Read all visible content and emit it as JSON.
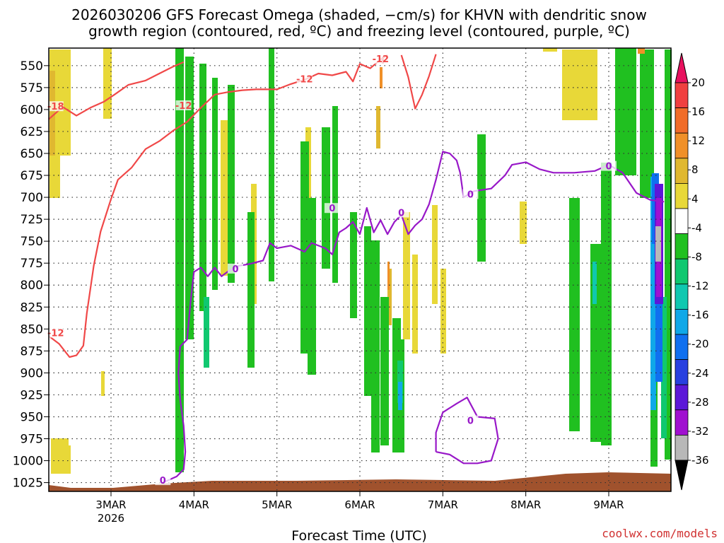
{
  "title": {
    "line1": "2026030206 GFS Forecast Omega (shaded, −cm/s) for KHVN with dendritic snow",
    "line2": "growth region (contoured, red, ºC) and freezing level (contoured, purple, ºC)"
  },
  "credit": "coolwx.com/models",
  "chart_data": {
    "type": "time-height cross section",
    "xlabel": "Forecast Time (UTC)",
    "ylabel": "",
    "y_axis": {
      "unit": "hPa",
      "ticks": [
        550,
        575,
        600,
        625,
        650,
        675,
        700,
        725,
        750,
        775,
        800,
        825,
        850,
        875,
        900,
        925,
        950,
        975,
        1000,
        1025
      ],
      "range": [
        1035,
        530
      ]
    },
    "x_axis": {
      "start": "2026-03-02T06:00Z",
      "end": "2026-03-09T18:00Z",
      "ticks": [
        {
          "time": "2026-03-03T00:00Z",
          "label": "3MAR",
          "sublabel": "2026"
        },
        {
          "time": "2026-03-04T00:00Z",
          "label": "4MAR"
        },
        {
          "time": "2026-03-05T00:00Z",
          "label": "5MAR"
        },
        {
          "time": "2026-03-06T00:00Z",
          "label": "6MAR"
        },
        {
          "time": "2026-03-07T00:00Z",
          "label": "7MAR"
        },
        {
          "time": "2026-03-08T00:00Z",
          "label": "8MAR"
        },
        {
          "time": "2026-03-09T00:00Z",
          "label": "9MAR"
        }
      ]
    },
    "grid": true,
    "colorbar": {
      "unit": "−cm/s",
      "levels": [
        20,
        16,
        12,
        8,
        4,
        -4,
        -8,
        -12,
        -16,
        -20,
        -24,
        -28,
        -32,
        -36
      ],
      "colors_top_to_bottom": [
        "#e8115e",
        "#f04040",
        "#f06c28",
        "#f09028",
        "#e0b830",
        "#e8d838",
        "#ffffff",
        "#20c020",
        "#10c870",
        "#10c8b0",
        "#10a8e8",
        "#1070f0",
        "#2840e0",
        "#5c18d8",
        "#a010d0",
        "#b8b8b8",
        "#000000"
      ]
    },
    "surface_pressure_hPa": 1025,
    "contours": [
      {
        "name": "dendritic snow growth region",
        "color": "#f04848",
        "labels": [
          "-18",
          "-12",
          "-12",
          "-12",
          "-12"
        ],
        "label_points": [
          {
            "time": "2026-03-02T08:00Z",
            "p": 597,
            "text": "-18"
          },
          {
            "time": "2026-03-03T21:00Z",
            "p": 596,
            "text": "-12"
          },
          {
            "time": "2026-03-05T08:00Z",
            "p": 566,
            "text": "-12"
          },
          {
            "time": "2026-03-06T06:00Z",
            "p": 543,
            "text": "-12"
          },
          {
            "time": "2026-03-02T08:00Z",
            "p": 855,
            "text": "-12"
          }
        ],
        "paths": [
          [
            [
              "2026-03-02T06:00Z",
              611
            ],
            [
              "2026-03-02T10:00Z",
              597
            ],
            [
              "2026-03-02T14:00Z",
              607
            ],
            [
              "2026-03-02T18:00Z",
              598
            ],
            [
              "2026-03-02T22:00Z",
              591
            ],
            [
              "2026-03-03T01:00Z",
              583
            ],
            [
              "2026-03-03T05:00Z",
              572
            ],
            [
              "2026-03-03T10:00Z",
              567
            ],
            [
              "2026-03-03T14:00Z",
              559
            ],
            [
              "2026-03-03T18:00Z",
              551
            ],
            [
              "2026-03-03T21:00Z",
              546
            ]
          ],
          [
            [
              "2026-03-02T06:00Z",
              858
            ],
            [
              "2026-03-02T09:00Z",
              867
            ],
            [
              "2026-03-02T12:00Z",
              882
            ],
            [
              "2026-03-02T14:00Z",
              880
            ],
            [
              "2026-03-02T16:00Z",
              869
            ],
            [
              "2026-03-02T17:00Z",
              832
            ],
            [
              "2026-03-02T19:00Z",
              778
            ],
            [
              "2026-03-02T21:00Z",
              739
            ],
            [
              "2026-03-03T00:00Z",
              702
            ],
            [
              "2026-03-03T02:00Z",
              680
            ],
            [
              "2026-03-03T06:00Z",
              666
            ],
            [
              "2026-03-03T10:00Z",
              645
            ],
            [
              "2026-03-03T14:00Z",
              636
            ],
            [
              "2026-03-03T18:00Z",
              624
            ],
            [
              "2026-03-03T22:00Z",
              614
            ],
            [
              "2026-03-04T02:00Z",
              598
            ],
            [
              "2026-03-04T06:00Z",
              583
            ],
            [
              "2026-03-04T10:00Z",
              580
            ],
            [
              "2026-03-04T14:00Z",
              578
            ],
            [
              "2026-03-04T18:00Z",
              577
            ],
            [
              "2026-03-05T00:00Z",
              577
            ],
            [
              "2026-03-05T04:00Z",
              571
            ],
            [
              "2026-03-05T08:00Z",
              566
            ],
            [
              "2026-03-05T12:00Z",
              559
            ],
            [
              "2026-03-05T16:00Z",
              561
            ],
            [
              "2026-03-05T20:00Z",
              557
            ],
            [
              "2026-03-05T22:00Z",
              568
            ],
            [
              "2026-03-06T00:00Z",
              548
            ],
            [
              "2026-03-06T03:00Z",
              553
            ],
            [
              "2026-03-06T06:00Z",
              543
            ],
            [
              "2026-03-06T08:00Z",
              538
            ]
          ],
          [
            [
              "2026-03-06T12:00Z",
              538
            ],
            [
              "2026-03-06T14:00Z",
              563
            ],
            [
              "2026-03-06T16:00Z",
              599
            ],
            [
              "2026-03-06T18:00Z",
              583
            ],
            [
              "2026-03-06T20:00Z",
              562
            ],
            [
              "2026-03-06T22:00Z",
              537
            ]
          ]
        ]
      },
      {
        "name": "freezing level",
        "color": "#9818c8",
        "labels": [
          "0",
          "0",
          "0",
          "0",
          "0",
          "0",
          "0"
        ],
        "label_points": [
          {
            "time": "2026-03-03T15:00Z",
            "p": 1023,
            "text": "0"
          },
          {
            "time": "2026-03-04T12:00Z",
            "p": 782,
            "text": "0"
          },
          {
            "time": "2026-03-05T16:00Z",
            "p": 713,
            "text": "0"
          },
          {
            "time": "2026-03-06T12:00Z",
            "p": 718,
            "text": "0"
          },
          {
            "time": "2026-03-07T08:00Z",
            "p": 697,
            "text": "0"
          },
          {
            "time": "2026-03-09T00:00Z",
            "p": 665,
            "text": "0"
          },
          {
            "time": "2026-03-07T08:00Z",
            "p": 955,
            "text": "0"
          }
        ],
        "paths": [
          [
            [
              "2026-03-03T15:00Z",
              1025
            ],
            [
              "2026-03-03T19:00Z",
              1018
            ],
            [
              "2026-03-03T21:00Z",
              1010
            ],
            [
              "2026-03-03T21:30Z",
              990
            ],
            [
              "2026-03-03T21:00Z",
              960
            ],
            [
              "2026-03-03T20:00Z",
              930
            ],
            [
              "2026-03-03T19:30Z",
              900
            ],
            [
              "2026-03-03T20:00Z",
              870
            ],
            [
              "2026-03-03T22:00Z",
              862
            ],
            [
              "2026-03-03T23:00Z",
              820
            ],
            [
              "2026-03-04T00:00Z",
              785
            ],
            [
              "2026-03-04T02:00Z",
              780
            ],
            [
              "2026-03-04T04:00Z",
              790
            ],
            [
              "2026-03-04T06:00Z",
              780
            ],
            [
              "2026-03-04T08:00Z",
              790
            ],
            [
              "2026-03-04T10:00Z",
              784
            ],
            [
              "2026-03-04T13:00Z",
              778
            ],
            [
              "2026-03-04T16:00Z",
              776
            ],
            [
              "2026-03-04T20:00Z",
              772
            ],
            [
              "2026-03-04T22:00Z",
              752
            ],
            [
              "2026-03-05T00:00Z",
              758
            ],
            [
              "2026-03-05T04:00Z",
              755
            ],
            [
              "2026-03-05T08:00Z",
              762
            ],
            [
              "2026-03-05T10:00Z",
              752
            ],
            [
              "2026-03-05T14:00Z",
              758
            ],
            [
              "2026-03-05T16:00Z",
              765
            ],
            [
              "2026-03-05T18:00Z",
              740
            ],
            [
              "2026-03-05T20:00Z",
              735
            ],
            [
              "2026-03-05T22:00Z",
              728
            ],
            [
              "2026-03-06T00:00Z",
              742
            ],
            [
              "2026-03-06T02:00Z",
              712
            ],
            [
              "2026-03-06T04:00Z",
              740
            ],
            [
              "2026-03-06T06:00Z",
              726
            ],
            [
              "2026-03-06T08:00Z",
              742
            ],
            [
              "2026-03-06T10:00Z",
              728
            ],
            [
              "2026-03-06T12:00Z",
              720
            ],
            [
              "2026-03-06T14:00Z",
              742
            ],
            [
              "2026-03-06T16:00Z",
              732
            ],
            [
              "2026-03-06T18:00Z",
              725
            ],
            [
              "2026-03-06T20:00Z",
              708
            ],
            [
              "2026-03-06T22:00Z",
              680
            ],
            [
              "2026-03-07T00:00Z",
              648
            ],
            [
              "2026-03-07T02:00Z",
              650
            ],
            [
              "2026-03-07T04:00Z",
              658
            ],
            [
              "2026-03-07T05:00Z",
              672
            ],
            [
              "2026-03-07T06:00Z",
              700
            ],
            [
              "2026-03-07T09:00Z",
              693
            ],
            [
              "2026-03-07T14:00Z",
              690
            ],
            [
              "2026-03-07T18:00Z",
              675
            ],
            [
              "2026-03-07T20:00Z",
              663
            ],
            [
              "2026-03-08T00:00Z",
              660
            ],
            [
              "2026-03-08T04:00Z",
              668
            ],
            [
              "2026-03-08T08:00Z",
              672
            ],
            [
              "2026-03-08T14:00Z",
              672
            ],
            [
              "2026-03-08T20:00Z",
              670
            ],
            [
              "2026-03-09T00:00Z",
              663
            ],
            [
              "2026-03-09T04:00Z",
              672
            ],
            [
              "2026-03-09T08:00Z",
              695
            ],
            [
              "2026-03-09T12:00Z",
              703
            ],
            [
              "2026-03-09T16:00Z",
              705
            ]
          ],
          [
            [
              "2026-03-06T22:00Z",
              990
            ],
            [
              "2026-03-07T02:00Z",
              993
            ],
            [
              "2026-03-07T06:00Z",
              1003
            ],
            [
              "2026-03-07T10:00Z",
              1003
            ],
            [
              "2026-03-07T14:00Z",
              1000
            ],
            [
              "2026-03-07T16:00Z",
              975
            ],
            [
              "2026-03-07T15:00Z",
              952
            ],
            [
              "2026-03-07T10:00Z",
              950
            ],
            [
              "2026-03-07T07:00Z",
              928
            ],
            [
              "2026-03-07T04:00Z",
              935
            ],
            [
              "2026-03-07T00:00Z",
              945
            ],
            [
              "2026-03-06T22:00Z",
              968
            ],
            [
              "2026-03-06T22:00Z",
              990
            ]
          ]
        ]
      }
    ]
  }
}
